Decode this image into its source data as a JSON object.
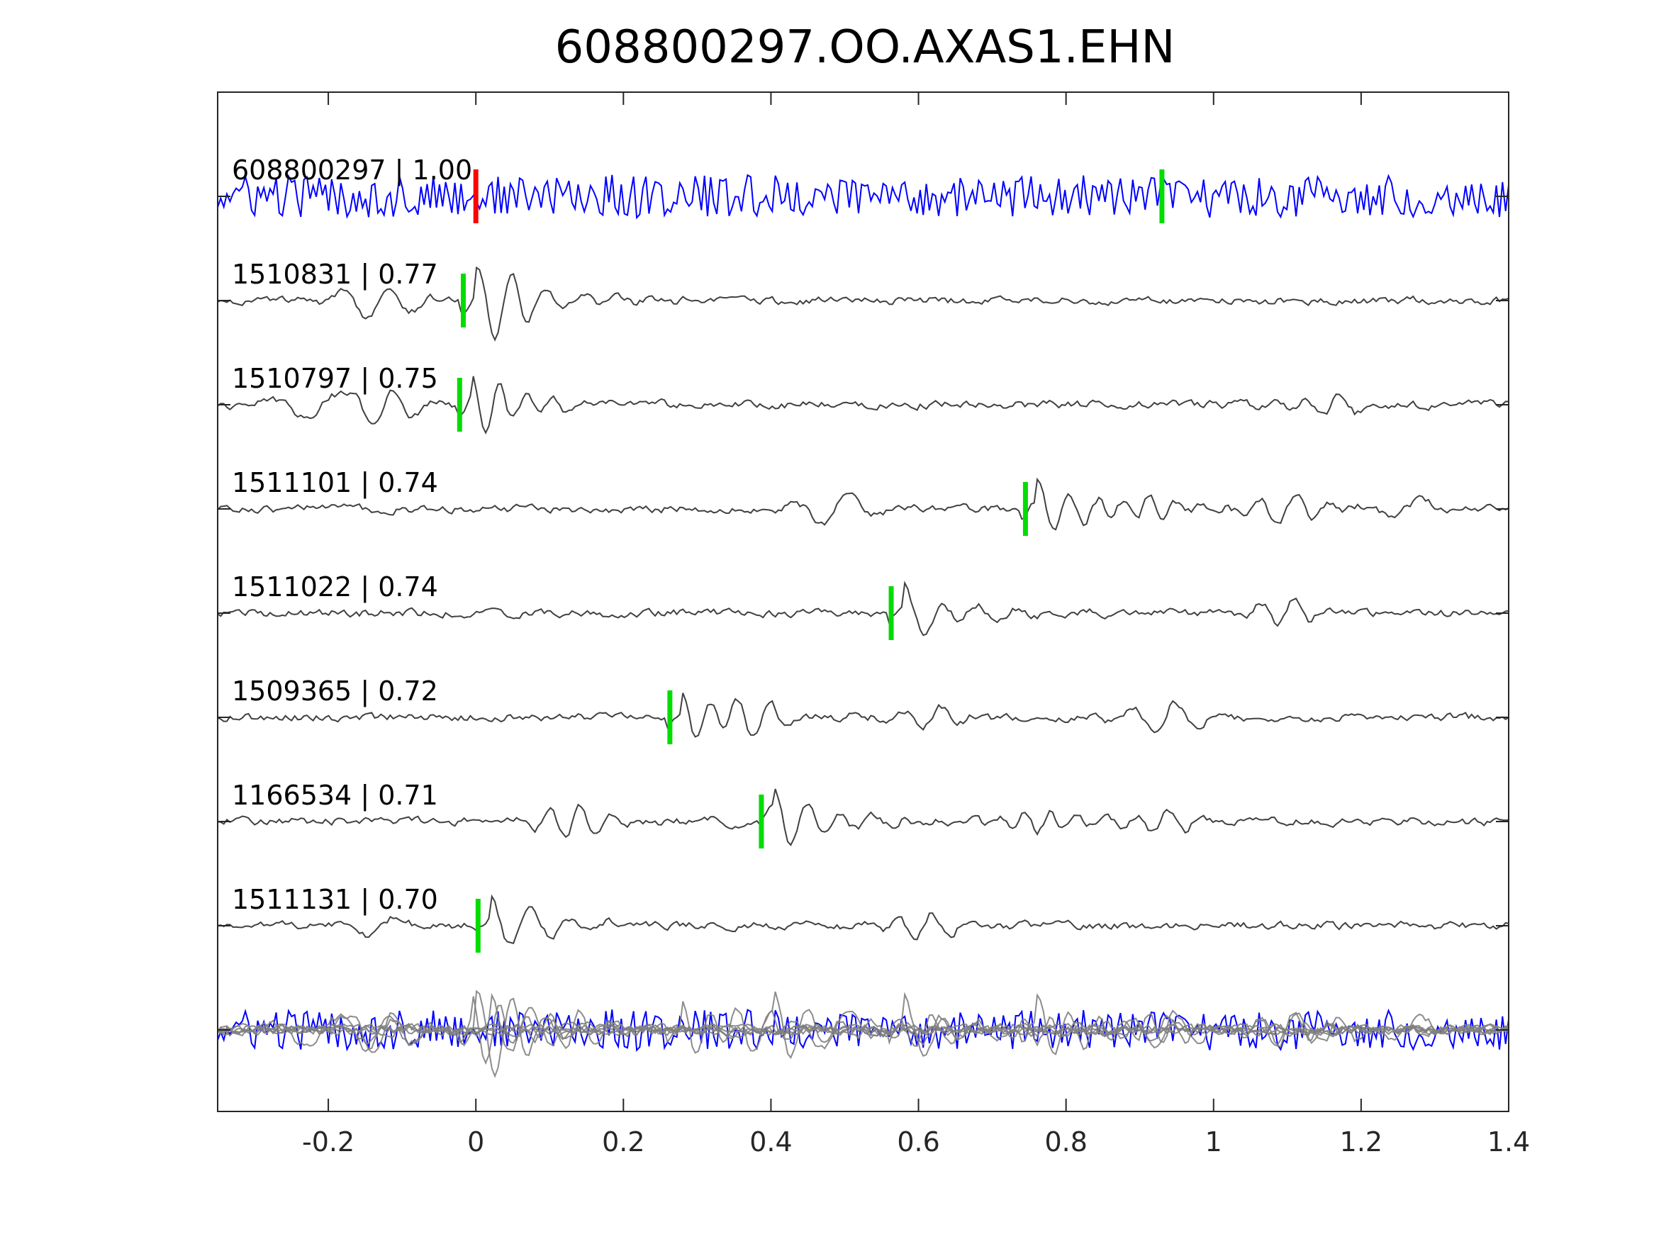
{
  "chart_data": {
    "type": "line",
    "title": "608800297.OO.AXAS1.EHN",
    "xlabel": "",
    "ylabel": "",
    "xlim": [
      -0.35,
      1.4
    ],
    "x_ticks": [
      -0.2,
      0,
      0.2,
      0.4,
      0.6,
      0.8,
      1,
      1.2,
      1.4
    ],
    "x_tick_labels": [
      "-0.2",
      "0",
      "0.2",
      "0.4",
      "0.6",
      "0.8",
      "1",
      "1.2",
      "1.4"
    ],
    "grid": false,
    "legend": "none",
    "colors": {
      "template": "#0000ff",
      "match": "#404040",
      "stack": "#808080",
      "pick_red": "#ff0000",
      "pick_green": "#00dd00",
      "axis": "#262626"
    },
    "series": [
      {
        "label": "608800297 | 1.00",
        "kind": "template",
        "offset": 0,
        "amp": 1.0,
        "picks": [
          {
            "x": 0.0,
            "color": "red"
          },
          {
            "x": 0.93,
            "color": "green"
          }
        ]
      },
      {
        "label": "1510831 | 0.77",
        "kind": "match",
        "offset": 1,
        "amp": 0.85,
        "picks": [
          {
            "x": -0.017,
            "color": "green"
          }
        ]
      },
      {
        "label": "1510797 | 0.75",
        "kind": "match",
        "offset": 2,
        "amp": 0.85,
        "picks": [
          {
            "x": -0.022,
            "color": "green"
          }
        ]
      },
      {
        "label": "1511101 | 0.74",
        "kind": "match",
        "offset": 3,
        "amp": 0.85,
        "picks": [
          {
            "x": 0.745,
            "color": "green"
          }
        ]
      },
      {
        "label": "1511022 | 0.74",
        "kind": "match",
        "offset": 4,
        "amp": 0.85,
        "picks": [
          {
            "x": 0.563,
            "color": "green"
          }
        ]
      },
      {
        "label": "1509365 | 0.72",
        "kind": "match",
        "offset": 5,
        "amp": 0.85,
        "picks": [
          {
            "x": 0.263,
            "color": "green"
          }
        ]
      },
      {
        "label": "1166534 | 0.71",
        "kind": "match",
        "offset": 6,
        "amp": 0.85,
        "picks": [
          {
            "x": 0.387,
            "color": "green"
          }
        ]
      },
      {
        "label": "1511131 | 0.70",
        "kind": "match",
        "offset": 7,
        "amp": 0.85,
        "picks": [
          {
            "x": 0.003,
            "color": "green"
          }
        ]
      }
    ],
    "stack": {
      "offset": 8,
      "note": "overlay of all traces"
    }
  }
}
